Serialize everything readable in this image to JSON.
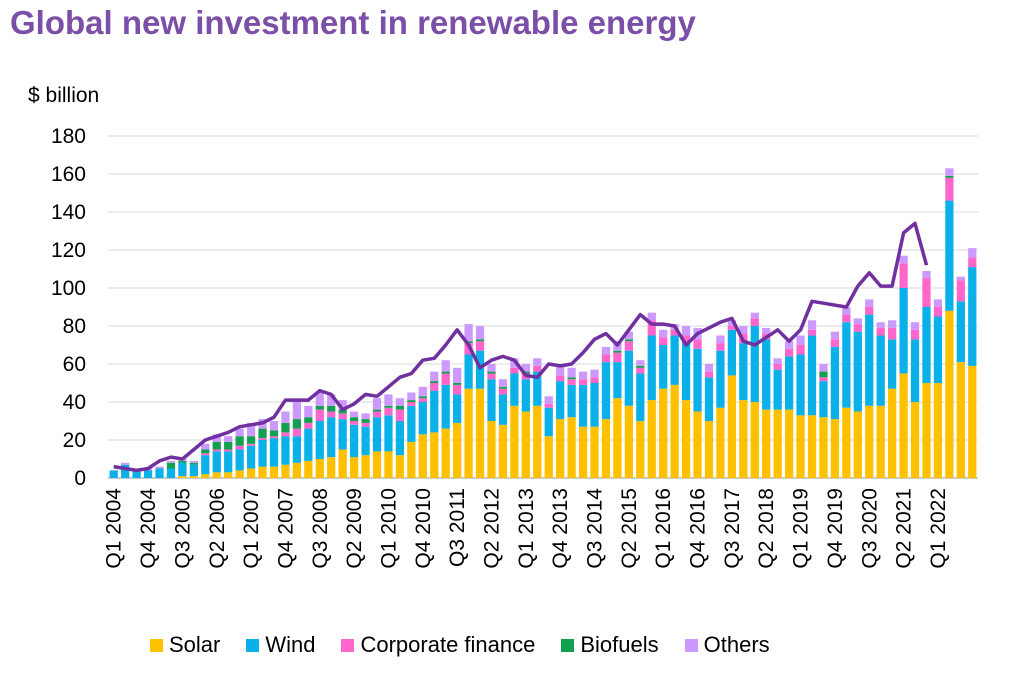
{
  "chart_data": {
    "type": "bar",
    "title": "Global new investment in renewable energy",
    "ylabel": "$ billion",
    "ylim": [
      0,
      180
    ],
    "yticks": [
      0,
      20,
      40,
      60,
      80,
      100,
      120,
      140,
      160,
      180
    ],
    "x_tick_labels": [
      "Q1 2004",
      "Q4 2004",
      "Q3 2005",
      "Q2 2006",
      "Q1 2007",
      "Q4 2007",
      "Q3 2008",
      "Q2 2009",
      "Q1 2010",
      "Q4 2010",
      "Q3 2011",
      "Q2 2012",
      "Q1 2013",
      "Q4 2013",
      "Q3 2014",
      "Q2 2015",
      "Q1 2016",
      "Q4 2016",
      "Q3 2017",
      "Q2 2018",
      "Q1 2019",
      "Q4 2019",
      "Q3 2020",
      "Q2 2021",
      "Q1 2022"
    ],
    "x_tick_every": 3,
    "grid": true,
    "legend_position": "bottom",
    "colors": {
      "Solar": "#ffc000",
      "Wind": "#0ab0e8",
      "Corporate finance": "#ff66cc",
      "Biofuels": "#10a050",
      "Others": "#cc99ff",
      "Line": "#7030a0"
    },
    "series": [
      {
        "name": "Solar",
        "values": [
          0,
          0,
          0,
          0,
          0,
          0,
          1,
          1,
          2,
          3,
          3,
          4,
          5,
          6,
          6,
          7,
          8,
          9,
          10,
          11,
          15,
          11,
          12,
          14,
          14,
          12,
          19,
          23,
          24,
          26,
          29,
          47,
          47,
          30,
          28,
          38,
          35,
          38,
          22,
          31,
          32,
          27,
          27,
          31,
          42,
          38,
          30,
          41,
          47,
          49,
          41,
          35,
          30,
          37,
          54,
          41,
          40,
          36,
          36,
          36,
          33,
          33,
          32,
          31,
          37,
          35,
          38,
          38,
          47,
          55,
          40,
          50,
          50,
          88,
          61,
          59
        ]
      },
      {
        "name": "Wind",
        "values": [
          4,
          7,
          4,
          4,
          5,
          5,
          7,
          6,
          10,
          11,
          11,
          11,
          12,
          14,
          15,
          15,
          14,
          17,
          20,
          21,
          16,
          17,
          15,
          18,
          19,
          18,
          19,
          17,
          22,
          23,
          15,
          18,
          20,
          22,
          16,
          17,
          17,
          18,
          15,
          20,
          17,
          22,
          23,
          30,
          19,
          29,
          25,
          34,
          23,
          26,
          30,
          33,
          23,
          30,
          24,
          30,
          40,
          37,
          21,
          28,
          32,
          42,
          19,
          38,
          45,
          42,
          48,
          37,
          26,
          45,
          33,
          40,
          35,
          58,
          32,
          52
        ]
      },
      {
        "name": "Corporate finance",
        "values": [
          0,
          0,
          0,
          0,
          0,
          0,
          0,
          0,
          1,
          1,
          1,
          2,
          1,
          1,
          1,
          2,
          4,
          3,
          6,
          3,
          3,
          2,
          2,
          3,
          4,
          6,
          2,
          2,
          4,
          6,
          5,
          6,
          5,
          3,
          3,
          3,
          3,
          3,
          2,
          3,
          3,
          3,
          3,
          4,
          5,
          5,
          3,
          8,
          4,
          3,
          4,
          5,
          3,
          4,
          2,
          5,
          4,
          3,
          3,
          4,
          5,
          3,
          2,
          4,
          4,
          4,
          4,
          4,
          6,
          13,
          5,
          15,
          5,
          12,
          11,
          5
        ]
      },
      {
        "name": "Biofuels",
        "values": [
          0,
          0,
          0,
          0,
          0,
          3,
          1,
          1,
          2,
          4,
          4,
          5,
          4,
          5,
          3,
          5,
          5,
          3,
          2,
          3,
          2,
          2,
          2,
          1,
          1,
          2,
          1,
          1,
          1,
          1,
          1,
          1,
          1,
          1,
          1,
          0,
          1,
          0,
          0,
          0,
          1,
          0,
          0,
          0,
          1,
          1,
          1,
          0,
          0,
          0,
          0,
          0,
          0,
          0,
          0,
          0,
          0,
          0,
          0,
          0,
          0,
          0,
          3,
          0,
          0,
          0,
          0,
          0,
          0,
          0,
          0,
          0,
          0,
          1,
          0,
          0
        ]
      },
      {
        "name": "Others",
        "values": [
          0,
          1,
          0,
          1,
          1,
          1,
          1,
          1,
          3,
          4,
          3,
          4,
          7,
          5,
          5,
          6,
          10,
          6,
          7,
          6,
          5,
          3,
          3,
          6,
          6,
          4,
          4,
          5,
          5,
          6,
          8,
          9,
          7,
          4,
          4,
          5,
          4,
          4,
          4,
          5,
          5,
          4,
          4,
          4,
          5,
          4,
          3,
          4,
          4,
          3,
          5,
          6,
          4,
          4,
          3,
          4,
          3,
          3,
          3,
          4,
          5,
          5,
          4,
          4,
          4,
          3,
          4,
          3,
          4,
          4,
          4,
          4,
          4,
          4,
          2,
          5
        ]
      },
      {
        "name": "",
        "type": "line",
        "values": [
          6,
          5,
          4,
          5,
          9,
          11,
          10,
          15,
          20,
          22,
          24,
          27,
          28,
          29,
          32,
          41,
          41,
          41,
          46,
          44,
          36,
          39,
          44,
          43,
          48,
          53,
          55,
          62,
          63,
          70,
          78,
          70,
          58,
          62,
          64,
          62,
          54,
          53,
          60,
          59,
          60,
          66,
          73,
          76,
          70,
          78,
          86,
          81,
          81,
          80,
          70,
          76,
          79,
          82,
          84,
          72,
          70,
          74,
          78,
          72,
          78,
          93,
          92,
          91,
          90,
          101,
          108,
          101,
          101,
          129,
          134,
          112
        ]
      }
    ]
  },
  "legend": {
    "items": [
      {
        "label": "Solar",
        "color": "#ffc000"
      },
      {
        "label": "Wind",
        "color": "#0ab0e8"
      },
      {
        "label": "Corporate finance",
        "color": "#ff66cc"
      },
      {
        "label": "Biofuels",
        "color": "#10a050"
      },
      {
        "label": "Others",
        "color": "#cc99ff"
      }
    ]
  }
}
